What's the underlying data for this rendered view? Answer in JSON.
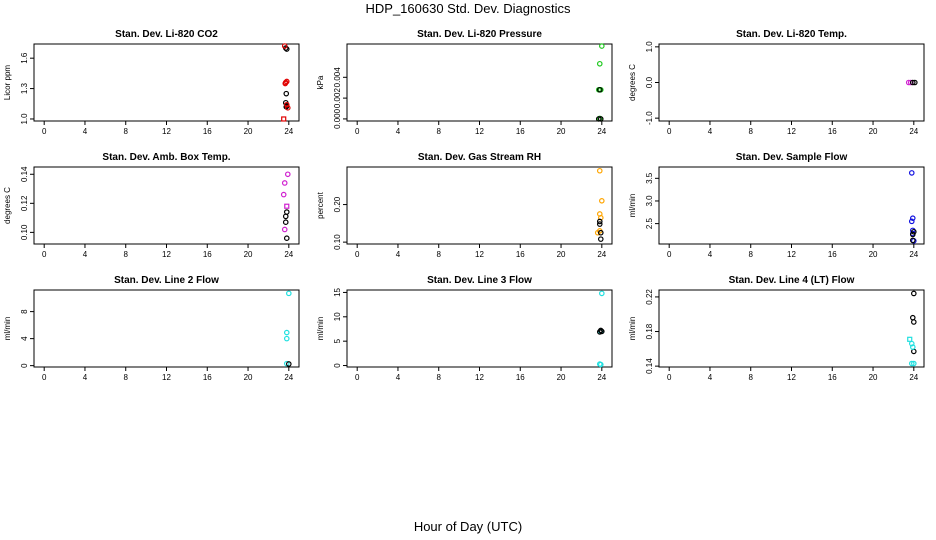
{
  "page": {
    "title": "HDP_160630  Std. Dev. Diagnostics",
    "xlabel": "Hour of Day (UTC)"
  },
  "colors": {
    "black": "#000000",
    "red": "#e00000",
    "green": "#1ec81e",
    "magenta": "#d020d0",
    "orange": "#ffa500",
    "blue": "#1010e0",
    "cyan": "#20e0e0"
  },
  "chart_data": [
    {
      "type": "scatter",
      "title": "Stan. Dev. Li-820 CO2",
      "ylabel": "Licor ppm",
      "xlim": [
        -1,
        25
      ],
      "ylim": [
        0.98,
        1.74
      ],
      "xticks": [
        "0",
        "4",
        "8",
        "12",
        "16",
        "20",
        "24"
      ],
      "xtick_values": [
        0,
        4,
        8,
        12,
        16,
        20,
        24
      ],
      "yticks": [
        "1.0",
        "1.3",
        "1.6"
      ],
      "ytick_values": [
        1.0,
        1.3,
        1.6
      ],
      "series": [
        {
          "name": "black",
          "color": "#000000",
          "marker": "circle",
          "points": [
            [
              23.7,
              1.7
            ],
            [
              23.8,
              1.69
            ],
            [
              23.75,
              1.25
            ],
            [
              23.7,
              1.16
            ],
            [
              23.8,
              1.13
            ],
            [
              23.75,
              1.12
            ]
          ]
        },
        {
          "name": "red",
          "color": "#e00000",
          "marker": "circle",
          "points": [
            [
              23.6,
              1.72
            ],
            [
              23.7,
              1.36
            ],
            [
              23.8,
              1.37
            ],
            [
              23.65,
              1.35
            ],
            [
              23.8,
              1.14
            ],
            [
              23.9,
              1.11
            ]
          ]
        },
        {
          "name": "red-sq",
          "color": "#e00000",
          "marker": "square",
          "points": [
            [
              23.5,
              1.0
            ]
          ]
        }
      ]
    },
    {
      "type": "scatter",
      "title": "Stan. Dev. Li-820 Pressure",
      "ylabel": "kPa",
      "xlim": [
        -1,
        25
      ],
      "ylim": [
        -0.0002,
        0.0072
      ],
      "xticks": [
        "0",
        "4",
        "8",
        "12",
        "16",
        "20",
        "24"
      ],
      "xtick_values": [
        0,
        4,
        8,
        12,
        16,
        20,
        24
      ],
      "yticks": [
        "0.000",
        "0.002",
        "0.004"
      ],
      "ytick_values": [
        0,
        0.002,
        0.004
      ],
      "series": [
        {
          "name": "green",
          "color": "#1ec81e",
          "marker": "circle",
          "points": [
            [
              24.0,
              0.007
            ],
            [
              23.8,
              0.0053
            ],
            [
              23.9,
              0.0028
            ],
            [
              23.7,
              0.0028
            ],
            [
              23.8,
              5e-05
            ]
          ]
        },
        {
          "name": "black",
          "color": "#000000",
          "marker": "circle",
          "points": [
            [
              23.8,
              0.0028
            ],
            [
              23.9,
              0.0
            ],
            [
              23.7,
              0.0
            ]
          ]
        }
      ]
    },
    {
      "type": "scatter",
      "title": "Stan. Dev. Li-820 Temp.",
      "ylabel": "degrees C",
      "xlim": [
        -1,
        25
      ],
      "ylim": [
        -1.08,
        1.08
      ],
      "xticks": [
        "0",
        "4",
        "8",
        "12",
        "16",
        "20",
        "24"
      ],
      "xtick_values": [
        0,
        4,
        8,
        12,
        16,
        20,
        24
      ],
      "yticks": [
        "-1.0",
        "0.0",
        "1.0"
      ],
      "ytick_values": [
        -1.0,
        0.0,
        1.0
      ],
      "series": [
        {
          "name": "magenta",
          "color": "#d020d0",
          "marker": "circle",
          "points": [
            [
              23.5,
              0.0
            ],
            [
              23.7,
              0.0
            ]
          ]
        },
        {
          "name": "black",
          "color": "#000000",
          "marker": "circle",
          "points": [
            [
              23.9,
              0.0
            ],
            [
              24.1,
              0.0
            ]
          ]
        }
      ]
    },
    {
      "type": "scatter",
      "title": "Stan. Dev. Amb. Box Temp.",
      "ylabel": "degrees C",
      "xlim": [
        -1,
        25
      ],
      "ylim": [
        0.092,
        0.145
      ],
      "xticks": [
        "0",
        "4",
        "8",
        "12",
        "16",
        "20",
        "24"
      ],
      "xtick_values": [
        0,
        4,
        8,
        12,
        16,
        20,
        24
      ],
      "yticks": [
        "0.10",
        "0.12",
        "0.14"
      ],
      "ytick_values": [
        0.1,
        0.12,
        0.14
      ],
      "series": [
        {
          "name": "magenta",
          "color": "#d020d0",
          "marker": "circle",
          "points": [
            [
              23.9,
              0.14
            ],
            [
              23.6,
              0.134
            ],
            [
              23.5,
              0.126
            ],
            [
              23.6,
              0.102
            ]
          ]
        },
        {
          "name": "magenta-sq",
          "color": "#d020d0",
          "marker": "square",
          "points": [
            [
              23.8,
              0.118
            ]
          ]
        },
        {
          "name": "black",
          "color": "#000000",
          "marker": "circle",
          "points": [
            [
              23.8,
              0.114
            ],
            [
              23.7,
              0.111
            ],
            [
              23.7,
              0.107
            ],
            [
              23.8,
              0.096
            ]
          ]
        }
      ]
    },
    {
      "type": "scatter",
      "title": "Stan. Dev. Gas Stream RH",
      "ylabel": "percent",
      "xlim": [
        -1,
        25
      ],
      "ylim": [
        0.095,
        0.3
      ],
      "xticks": [
        "0",
        "4",
        "8",
        "12",
        "16",
        "20",
        "24"
      ],
      "xtick_values": [
        0,
        4,
        8,
        12,
        16,
        20,
        24
      ],
      "yticks": [
        "0.10",
        "0.20"
      ],
      "ytick_values": [
        0.1,
        0.2
      ],
      "series": [
        {
          "name": "orange",
          "color": "#ffa500",
          "marker": "circle",
          "points": [
            [
              23.8,
              0.29
            ],
            [
              24.0,
              0.21
            ],
            [
              23.8,
              0.175
            ],
            [
              23.9,
              0.165
            ],
            [
              23.8,
              0.13
            ],
            [
              23.6,
              0.125
            ]
          ]
        },
        {
          "name": "black",
          "color": "#000000",
          "marker": "circle",
          "points": [
            [
              23.8,
              0.155
            ],
            [
              23.8,
              0.148
            ],
            [
              23.9,
              0.125
            ],
            [
              23.9,
              0.108
            ]
          ]
        }
      ]
    },
    {
      "type": "scatter",
      "title": "Stan. Dev. Sample Flow",
      "ylabel": "ml/min",
      "xlim": [
        -1,
        25
      ],
      "ylim": [
        2.05,
        3.75
      ],
      "xticks": [
        "0",
        "4",
        "8",
        "12",
        "16",
        "20",
        "24"
      ],
      "xtick_values": [
        0,
        4,
        8,
        12,
        16,
        20,
        24
      ],
      "yticks": [
        "2.5",
        "3.0",
        "3.5"
      ],
      "ytick_values": [
        2.5,
        3.0,
        3.5
      ],
      "series": [
        {
          "name": "blue",
          "color": "#1010e0",
          "marker": "circle",
          "points": [
            [
              23.8,
              3.62
            ],
            [
              23.9,
              2.62
            ],
            [
              23.8,
              2.55
            ],
            [
              23.9,
              2.35
            ],
            [
              23.9,
              2.28
            ],
            [
              24.0,
              2.12
            ]
          ]
        },
        {
          "name": "black",
          "color": "#000000",
          "marker": "circle",
          "points": [
            [
              24.0,
              2.32
            ],
            [
              23.9,
              2.26
            ],
            [
              23.9,
              2.13
            ]
          ]
        }
      ]
    },
    {
      "type": "scatter",
      "title": "Stan. Dev. Line 2 Flow",
      "ylabel": "ml/min",
      "xlim": [
        -1,
        25
      ],
      "ylim": [
        -0.2,
        11.2
      ],
      "xticks": [
        "0",
        "4",
        "8",
        "12",
        "16",
        "20",
        "24"
      ],
      "xtick_values": [
        0,
        4,
        8,
        12,
        16,
        20,
        24
      ],
      "yticks": [
        "0",
        "4",
        "8"
      ],
      "ytick_values": [
        0,
        4,
        8
      ],
      "series": [
        {
          "name": "cyan",
          "color": "#20e0e0",
          "marker": "circle",
          "points": [
            [
              24.0,
              10.7
            ],
            [
              23.8,
              4.9
            ],
            [
              23.8,
              4.0
            ],
            [
              23.8,
              0.3
            ]
          ]
        },
        {
          "name": "black",
          "color": "#000000",
          "marker": "circle",
          "points": [
            [
              24.0,
              0.25
            ]
          ]
        }
      ]
    },
    {
      "type": "scatter",
      "title": "Stan. Dev. Line 3 Flow",
      "ylabel": "ml/min",
      "xlim": [
        -1,
        25
      ],
      "ylim": [
        -0.3,
        15.5
      ],
      "xticks": [
        "0",
        "4",
        "8",
        "12",
        "16",
        "20",
        "24"
      ],
      "xtick_values": [
        0,
        4,
        8,
        12,
        16,
        20,
        24
      ],
      "yticks": [
        "0",
        "5",
        "10",
        "15"
      ],
      "ytick_values": [
        0,
        5,
        10,
        15
      ],
      "series": [
        {
          "name": "cyan",
          "color": "#20e0e0",
          "marker": "circle",
          "points": [
            [
              24.0,
              14.8
            ],
            [
              23.9,
              7.0
            ],
            [
              23.8,
              0.3
            ],
            [
              23.9,
              0.2
            ]
          ]
        },
        {
          "name": "black",
          "color": "#000000",
          "marker": "circle",
          "points": [
            [
              23.9,
              7.2
            ],
            [
              24.0,
              7.0
            ],
            [
              23.8,
              6.9
            ]
          ]
        }
      ]
    },
    {
      "type": "scatter",
      "title": "Stan. Dev. Line 4 (LT) Flow",
      "ylabel": "ml/min",
      "xlim": [
        -1,
        25
      ],
      "ylim": [
        0.139,
        0.228
      ],
      "xticks": [
        "0",
        "4",
        "8",
        "12",
        "16",
        "20",
        "24"
      ],
      "xtick_values": [
        0,
        4,
        8,
        12,
        16,
        20,
        24
      ],
      "yticks": [
        "0.14",
        "0.18",
        "0.22"
      ],
      "ytick_values": [
        0.14,
        0.18,
        0.22
      ],
      "series": [
        {
          "name": "black",
          "color": "#000000",
          "marker": "circle",
          "points": [
            [
              24.0,
              0.224
            ],
            [
              23.9,
              0.196
            ],
            [
              24.0,
              0.191
            ],
            [
              24.0,
              0.157
            ]
          ]
        },
        {
          "name": "cyan",
          "color": "#20e0e0",
          "marker": "circle",
          "points": [
            [
              23.8,
              0.166
            ],
            [
              23.9,
              0.162
            ],
            [
              23.8,
              0.143
            ],
            [
              24.0,
              0.143
            ]
          ]
        },
        {
          "name": "cyan-sq",
          "color": "#20e0e0",
          "marker": "square",
          "points": [
            [
              23.6,
              0.171
            ]
          ]
        }
      ]
    }
  ]
}
